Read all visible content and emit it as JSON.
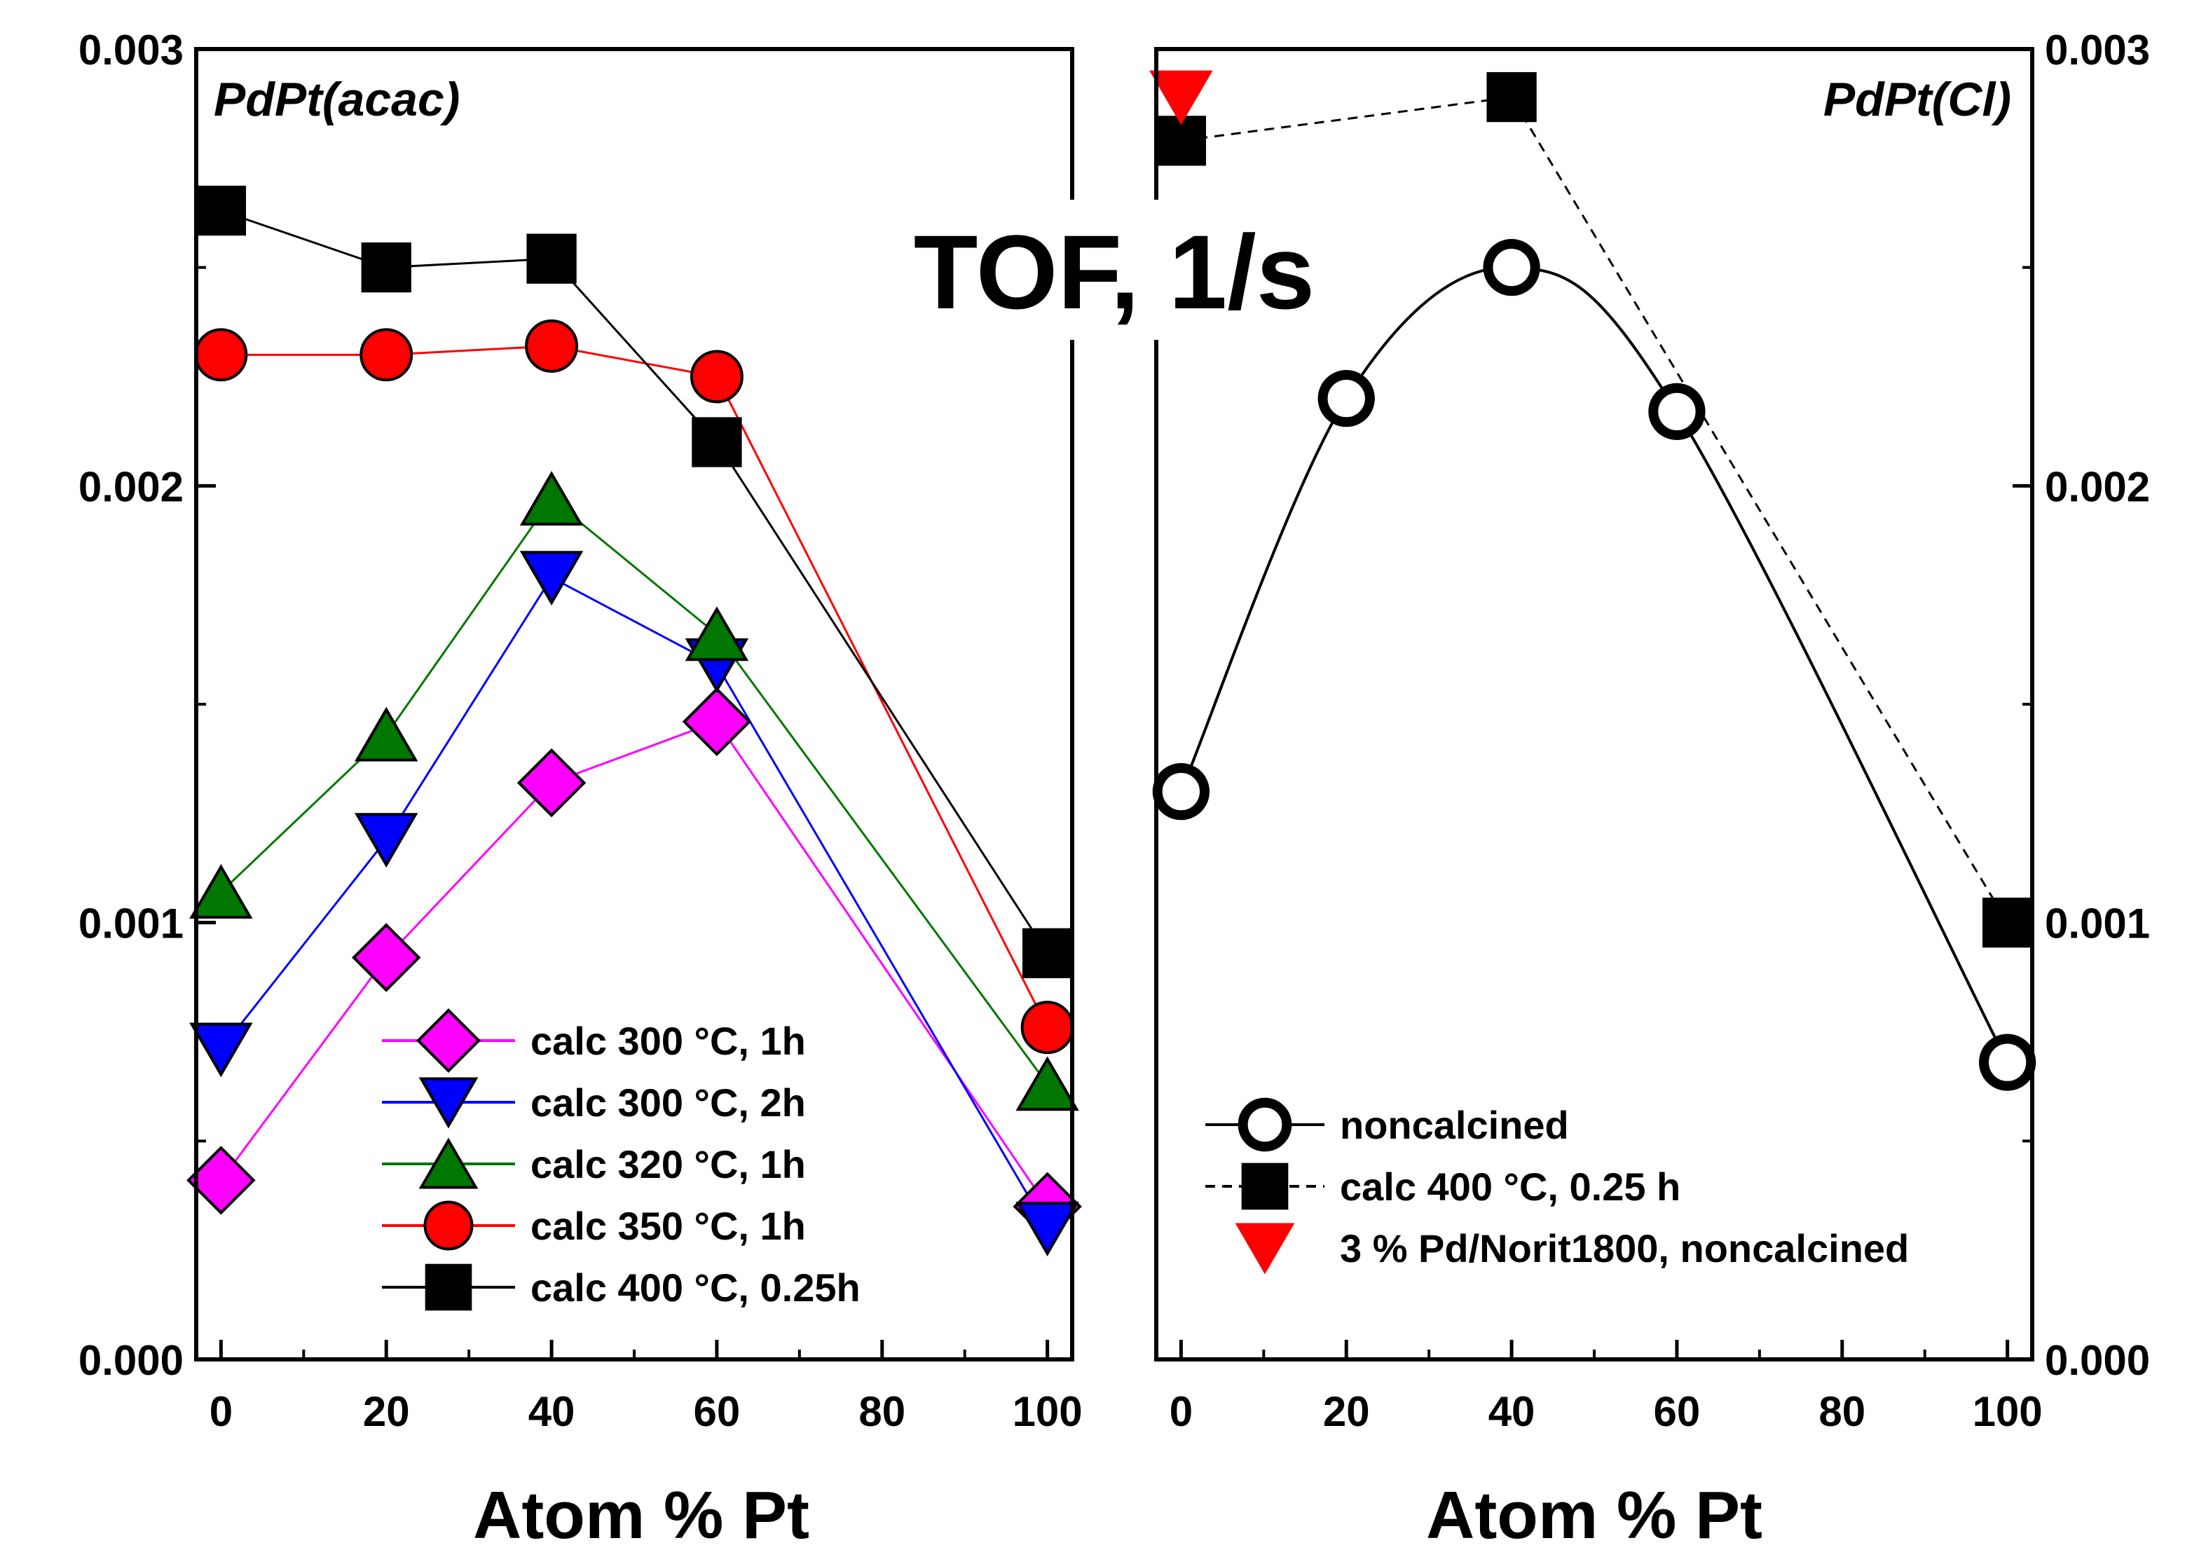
{
  "figure_title": "TOF, 1/s",
  "colors": {
    "magenta": "#ff00ff",
    "blue": "#0000ff",
    "green": "#007700",
    "red": "#ff0000",
    "black": "#000000"
  },
  "chart_data": [
    {
      "type": "line",
      "title": "PdPt(acac)",
      "xlabel": "Atom % Pt",
      "ylabel": "TOF, 1/s",
      "xlim": [
        -3,
        103
      ],
      "ylim": [
        0.0,
        0.003
      ],
      "x_ticks": [
        0,
        20,
        40,
        60,
        80,
        100
      ],
      "x_tick_labels": [
        "0",
        "20",
        "40",
        "60",
        "80",
        "100"
      ],
      "y_ticks": [
        0.0,
        0.001,
        0.002,
        0.003
      ],
      "y_tick_labels": [
        "0.000",
        "0.001",
        "0.002",
        "0.003"
      ],
      "y_axis_side": "left",
      "legend_position": "bottom-center",
      "series": [
        {
          "name": "calc 300 °C, 1h",
          "marker": "diamond",
          "color": "magenta",
          "dash": "solid",
          "x": [
            0,
            20,
            40,
            60,
            100
          ],
          "values": [
            0.00041,
            0.00092,
            0.00132,
            0.00146,
            0.00035
          ]
        },
        {
          "name": "calc 300 °C, 2h",
          "marker": "triangle-down",
          "color": "blue",
          "dash": "solid",
          "x": [
            0,
            20,
            40,
            60,
            100
          ],
          "values": [
            0.00071,
            0.00119,
            0.00179,
            0.00159,
            0.0003
          ]
        },
        {
          "name": "calc 320 °C, 1h",
          "marker": "triangle-up",
          "color": "green",
          "dash": "solid",
          "x": [
            0,
            20,
            40,
            60,
            100
          ],
          "values": [
            0.00107,
            0.00143,
            0.00197,
            0.00166,
            0.00063
          ]
        },
        {
          "name": "calc 350 °C, 1h",
          "marker": "circle",
          "color": "red",
          "dash": "solid",
          "x": [
            0,
            20,
            40,
            60,
            100
          ],
          "values": [
            0.0023,
            0.0023,
            0.00232,
            0.00225,
            0.00076
          ]
        },
        {
          "name": "calc 400 °C, 0.25h",
          "marker": "square",
          "color": "black",
          "dash": "solid",
          "x": [
            0,
            20,
            40,
            60,
            100
          ],
          "values": [
            0.00263,
            0.0025,
            0.00252,
            0.0021,
            0.00093
          ]
        }
      ]
    },
    {
      "type": "line",
      "title": "PdPt(Cl)",
      "xlabel": "Atom % Pt",
      "ylabel": "TOF, 1/s",
      "xlim": [
        -3,
        103
      ],
      "ylim": [
        0.0,
        0.003
      ],
      "x_ticks": [
        0,
        20,
        40,
        60,
        80,
        100
      ],
      "x_tick_labels": [
        "0",
        "20",
        "40",
        "60",
        "80",
        "100"
      ],
      "y_ticks": [
        0.0,
        0.001,
        0.002,
        0.003
      ],
      "y_tick_labels": [
        "0.000",
        "0.001",
        "0.002",
        "0.003"
      ],
      "y_axis_side": "right",
      "legend_position": "bottom-left",
      "series": [
        {
          "name": "noncalcined",
          "marker": "circle-open",
          "color": "black",
          "dash": "solid",
          "smooth": true,
          "x": [
            0,
            20,
            40,
            60,
            100
          ],
          "values": [
            0.0013,
            0.0022,
            0.0025,
            0.00217,
            0.00068
          ]
        },
        {
          "name": "calc 400 °C, 0.25 h",
          "marker": "square",
          "color": "black",
          "dash": "dashed",
          "x": [
            0,
            40,
            100
          ],
          "values": [
            0.00279,
            0.00289,
            0.001
          ]
        },
        {
          "name": "3 % Pd/Norit1800, noncalcined",
          "marker": "triangle-down",
          "color": "red",
          "dash": "none",
          "x": [
            0
          ],
          "values": [
            0.00289
          ]
        }
      ]
    }
  ]
}
